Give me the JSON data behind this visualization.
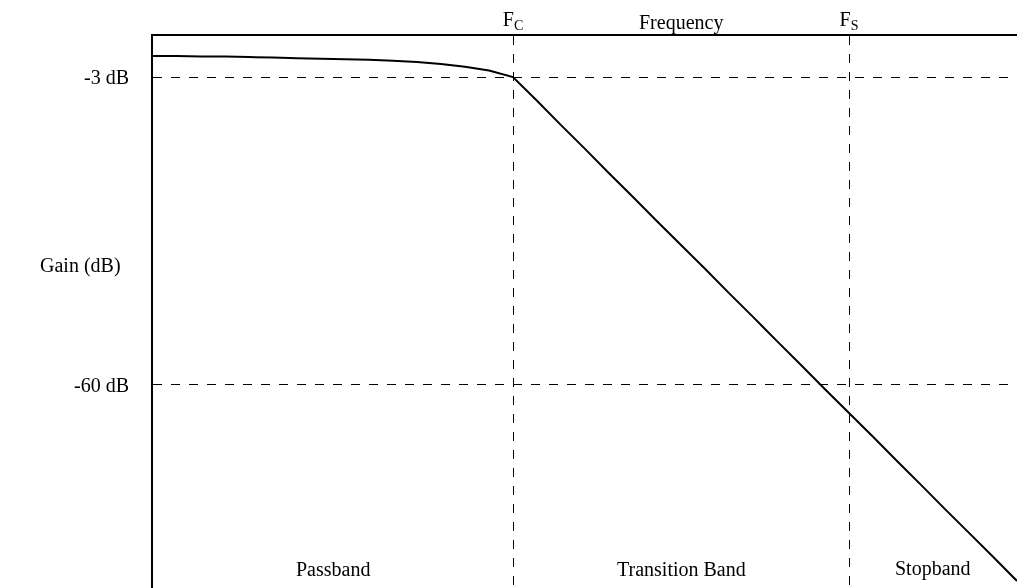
{
  "chart_data": {
    "type": "line",
    "xlabel": "Frequency",
    "ylabel": "Gain (dB)",
    "categories": [
      null,
      null,
      null,
      null,
      null,
      null,
      null,
      null,
      null,
      null,
      null,
      null,
      null,
      null,
      null,
      "F$_{C}$",
      null,
      null,
      null,
      null,
      null,
      null,
      null,
      null,
      null,
      null,
      null,
      null,
      null,
      "F$_{S}$",
      null,
      null,
      null,
      null,
      null,
      null,
      null
    ],
    "series": [
      {
        "color": "#000000",
        "values": [
          0.9,
          0.9,
          0.8,
          0.8,
          0.7,
          0.6,
          0.5,
          0.4,
          0.3,
          0.2,
          0,
          -0.2,
          -0.6,
          -1.1,
          -1.8,
          -3,
          -7.4,
          -11.9,
          -16.3,
          -20.8,
          -25.2,
          -29.7,
          -34.1,
          -38.5,
          -43.0,
          -47.4,
          -51.9,
          -56.3,
          -60.8,
          -65.2,
          -69.6,
          -74.1,
          -78.5,
          -83.0,
          -87.4,
          -91.8,
          -96.3
        ]
      }
    ],
    "ylim": [
      -97.6,
      4.6
    ],
    "yticks": [
      {
        "value": -3,
        "label": "-3 dB"
      },
      {
        "value": -60,
        "label": "-60 dB"
      }
    ],
    "annotations": [
      "Passband",
      "Transition Band",
      "Stopband"
    ],
    "grid": true,
    "marker": "none",
    "line_style": "solid"
  }
}
